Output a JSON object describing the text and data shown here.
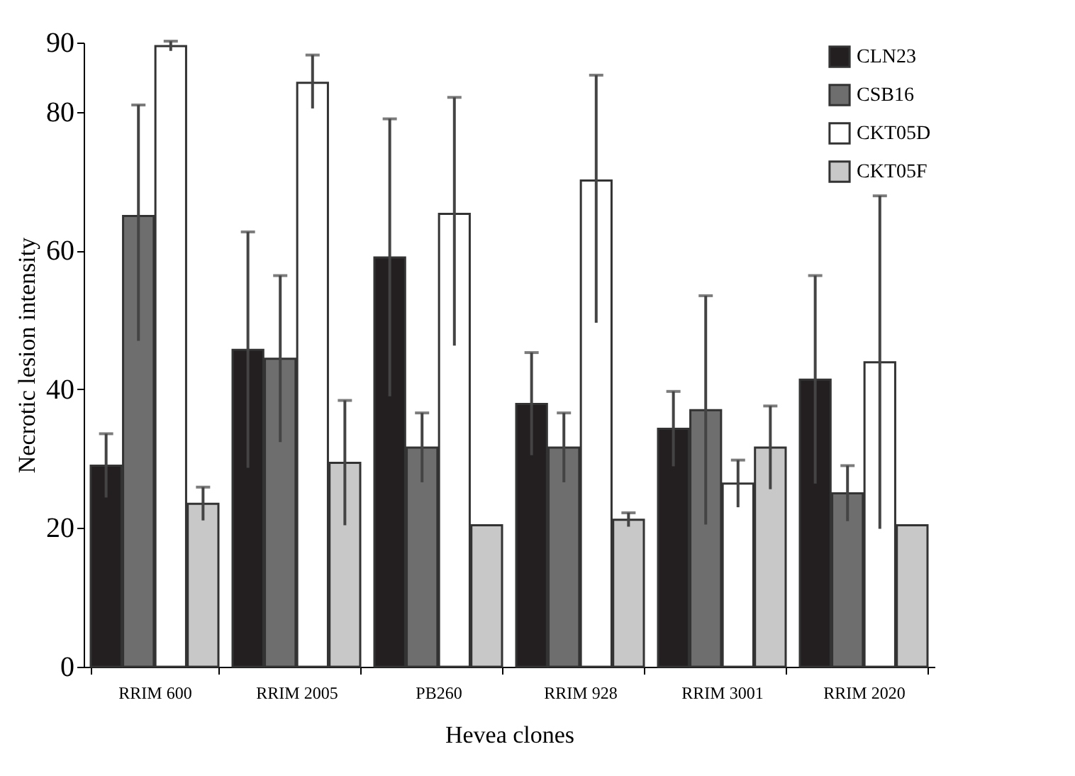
{
  "chart_data": {
    "type": "bar",
    "xlabel": "Hevea clones",
    "ylabel": "Necrotic lesion intensity",
    "categories": [
      "RRIM 600",
      "RRIM 2005",
      "PB260",
      "RRIM 928",
      "RRIM 3001",
      "RRIM 2020"
    ],
    "series": [
      {
        "name": "CLN23",
        "color": "#231f20",
        "values": [
          29,
          45.7,
          59,
          37.9,
          34.3,
          41.4
        ],
        "errors": [
          4.6,
          17,
          20,
          7.4,
          5.4,
          15
        ]
      },
      {
        "name": "CSB16",
        "color": "#6e6e6e",
        "values": [
          65,
          44.4,
          31.6,
          31.6,
          37,
          25
        ],
        "errors": [
          [
            47,
            81
          ],
          12,
          5,
          5,
          16.5,
          4
        ]
      },
      {
        "name": "CKT05D",
        "color": "#ffffff",
        "values": [
          89.5,
          84.2,
          65.3,
          70.1,
          26.4,
          43.9
        ],
        "errors": [
          0.7,
          [
            80.5,
            88.2
          ],
          [
            46.3,
            82.1
          ],
          [
            49.6,
            85.3
          ],
          3.4,
          24
        ]
      },
      {
        "name": "CKT05F",
        "color": "#c8c8c8",
        "values": [
          23.5,
          29.4,
          20.4,
          21.2,
          31.6,
          20.4
        ],
        "errors": [
          2.4,
          9,
          null,
          1,
          6,
          null
        ]
      }
    ],
    "ylim": [
      0,
      90
    ],
    "yticks": [
      0,
      20,
      40,
      60,
      80,
      90
    ],
    "grid": false,
    "legend": "top right"
  }
}
